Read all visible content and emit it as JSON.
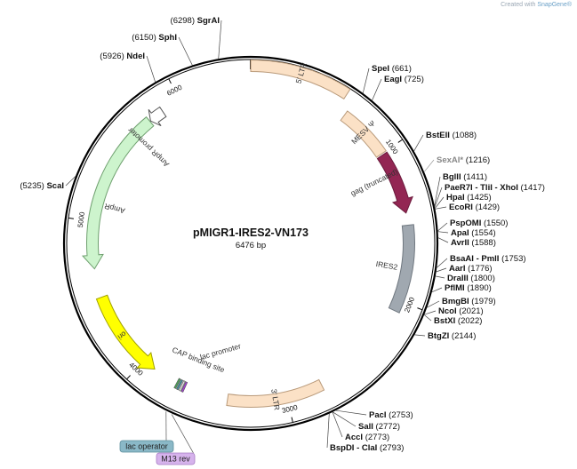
{
  "watermark": {
    "prefix": "Created with ",
    "brand": "SnapGene®"
  },
  "plasmid": {
    "name": "pMIGR1-IRES2-VN173",
    "size_label": "6476 bp",
    "length": 6476
  },
  "ticks": [
    {
      "pos": 1000,
      "label": "1000"
    },
    {
      "pos": 2000,
      "label": "2000"
    },
    {
      "pos": 3000,
      "label": "3000"
    },
    {
      "pos": 4000,
      "label": "4000"
    },
    {
      "pos": 5000,
      "label": "5000"
    },
    {
      "pos": 6000,
      "label": "6000"
    }
  ],
  "features": [
    {
      "id": "5ltr",
      "label": "5′ LTR",
      "start": 6476,
      "end": 590,
      "dir": 0,
      "color": "#fbe1c6",
      "stroke": "#b99a7a",
      "r": 200,
      "w": 13,
      "labelPos": 300
    },
    {
      "id": "mesv",
      "label": "MESV Ψ",
      "start": 650,
      "end": 1000,
      "dir": 0,
      "color": "#fbe1c6",
      "stroke": "#b99a7a",
      "r": 178,
      "w": 13,
      "labelPos": 820
    },
    {
      "id": "gag",
      "label": "gag (truncated)",
      "start": 1010,
      "end": 1420,
      "dir": 1,
      "color": "#932653",
      "stroke": "#6b1a3c",
      "r": 178,
      "w": 13,
      "labelPos": 1150,
      "labelR": 155
    },
    {
      "id": "ires2",
      "label": "IRES2",
      "start": 1500,
      "end": 2070,
      "dir": 0,
      "color": "#a0a8b0",
      "stroke": "#707880",
      "r": 178,
      "w": 13,
      "labelPos": 1790,
      "labelR": 155
    },
    {
      "id": "3ltr",
      "label": "3′ LTR",
      "start": 2760,
      "end": 3390,
      "dir": 0,
      "color": "#fbe1c6",
      "stroke": "#b99a7a",
      "r": 178,
      "w": 13,
      "labelPos": 3080
    },
    {
      "id": "ori",
      "label": "ori",
      "start": 4500,
      "end": 3910,
      "dir": -1,
      "color": "#ffff00",
      "stroke": "#a0a000",
      "r": 178,
      "w": 13,
      "labelPos": 4220
    },
    {
      "id": "ampr",
      "label": "AmpR",
      "start": 5765,
      "end": 4690,
      "dir": -1,
      "color": "#cdf4cd",
      "stroke": "#6fa06f",
      "r": 178,
      "w": 13,
      "labelPos": 5120,
      "labelR": 158
    },
    {
      "id": "amprprom",
      "label": "AmpR promoter",
      "start": 5870,
      "end": 5770,
      "dir": -1,
      "color": "#ffffff",
      "stroke": "#555555",
      "r": 178,
      "w": 13,
      "labelPos": 5640,
      "labelR": 158
    }
  ],
  "small_features": [
    {
      "id": "lacop",
      "label": "lac operator",
      "pos": 3718,
      "color": "#3f8fa0"
    },
    {
      "id": "lacprom",
      "label": "lac promoter",
      "pos": 3700,
      "color": "#e0e0e0"
    },
    {
      "id": "cap",
      "label": "CAP binding site",
      "pos": 3735,
      "color": "#4aa35a"
    },
    {
      "id": "m13",
      "label": "M13 rev",
      "pos": 3684,
      "color": "#a040d0"
    }
  ],
  "primer_boxes": [
    {
      "id": "lac-operator",
      "label": "lac operator",
      "fill": "#8ab8c7",
      "stroke": "#5d8e9c"
    },
    {
      "id": "m13-rev",
      "label": "M13 rev",
      "fill": "#d6b3ec",
      "stroke": "#a77cc4"
    }
  ],
  "feature_extra_labels": [
    {
      "text": "CAP binding site"
    },
    {
      "text": "lac promoter"
    }
  ],
  "sites": [
    {
      "name": "SgrAI",
      "pos": "(6298)",
      "bp": 6298,
      "side": "left"
    },
    {
      "name": "SphI",
      "pos": "(6150)",
      "bp": 6150,
      "side": "left"
    },
    {
      "name": "NdeI",
      "pos": "(5926)",
      "bp": 5926,
      "side": "left"
    },
    {
      "name": "ScaI",
      "pos": "(5235)",
      "bp": 5235,
      "side": "left"
    },
    {
      "name": "SpeI",
      "pos": "(661)",
      "bp": 661,
      "side": "right"
    },
    {
      "name": "EagI",
      "pos": "(725)",
      "bp": 725,
      "side": "right"
    },
    {
      "name": "BstEII",
      "pos": "(1088)",
      "bp": 1088,
      "side": "right"
    },
    {
      "name": "SexAI*",
      "pos": "(1216)",
      "bp": 1216,
      "side": "right",
      "gray": true
    },
    {
      "name": "BglII",
      "pos": "(1411)",
      "bp": 1411,
      "side": "right"
    },
    {
      "name": "PaeR7I - TliI - XhoI",
      "pos": "(1417)",
      "bp": 1417,
      "side": "right"
    },
    {
      "name": "HpaI",
      "pos": "(1425)",
      "bp": 1425,
      "side": "right"
    },
    {
      "name": "EcoRI",
      "pos": "(1429)",
      "bp": 1429,
      "side": "right"
    },
    {
      "name": "PspOMI",
      "pos": "(1550)",
      "bp": 1550,
      "side": "right"
    },
    {
      "name": "ApaI",
      "pos": "(1554)",
      "bp": 1554,
      "side": "right"
    },
    {
      "name": "AvrII",
      "pos": "(1588)",
      "bp": 1588,
      "side": "right"
    },
    {
      "name": "BsaAI - PmlI",
      "pos": "(1753)",
      "bp": 1753,
      "side": "right"
    },
    {
      "name": "AarI",
      "pos": "(1776)",
      "bp": 1776,
      "side": "right"
    },
    {
      "name": "DraIII",
      "pos": "(1800)",
      "bp": 1800,
      "side": "right"
    },
    {
      "name": "PflMI",
      "pos": "(1890)",
      "bp": 1890,
      "side": "right"
    },
    {
      "name": "BmgBI",
      "pos": "(1979)",
      "bp": 1979,
      "side": "right"
    },
    {
      "name": "NcoI",
      "pos": "(2021)",
      "bp": 2021,
      "side": "right"
    },
    {
      "name": "BstXI",
      "pos": "(2022)",
      "bp": 2022,
      "side": "right"
    },
    {
      "name": "BtgZI",
      "pos": "(2144)",
      "bp": 2144,
      "side": "right"
    },
    {
      "name": "PacI",
      "pos": "(2753)",
      "bp": 2753,
      "side": "right"
    },
    {
      "name": "SalI",
      "pos": "(2772)",
      "bp": 2772,
      "side": "right"
    },
    {
      "name": "AccI",
      "pos": "(2773)",
      "bp": 2773,
      "side": "right"
    },
    {
      "name": "BspDI - ClaI",
      "pos": "(2793)",
      "bp": 2793,
      "side": "right"
    }
  ]
}
